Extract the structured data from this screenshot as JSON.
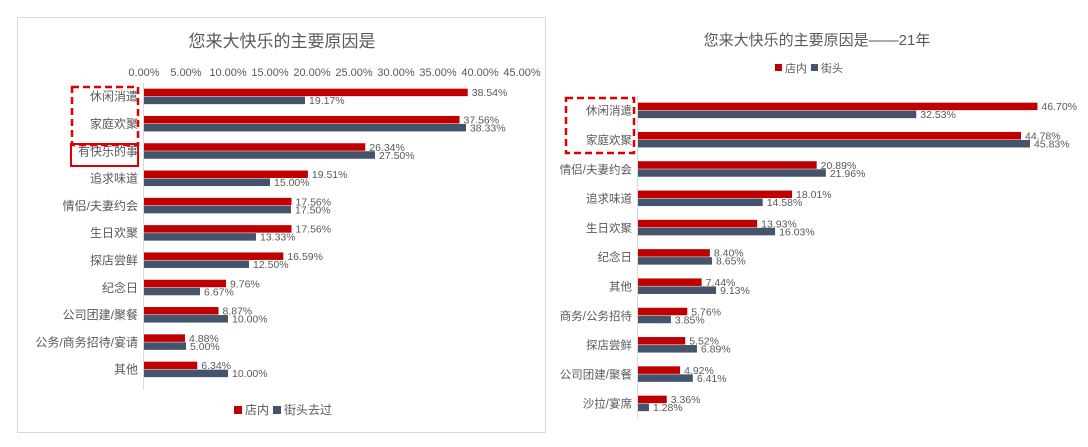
{
  "colors": {
    "store": "#c00000",
    "street": "#44546a",
    "axis": "#d9d9d9",
    "text": "#595959",
    "highlight": "#e00000"
  },
  "chart_data": [
    {
      "type": "bar",
      "orientation": "horizontal",
      "title": "您来大快乐的主要原因是",
      "xlabel": "",
      "ylabel": "",
      "xlim": [
        0,
        45
      ],
      "ticks": [
        "0.00%",
        "5.00%",
        "10.00%",
        "15.00%",
        "20.00%",
        "25.00%",
        "30.00%",
        "35.00%",
        "40.00%",
        "45.00%"
      ],
      "tick_position": "top",
      "legend_position": "bottom",
      "grid": false,
      "categories": [
        "休闲消遣",
        "家庭欢聚",
        "有快乐的事",
        "追求味道",
        "情侣/夫妻约会",
        "生日欢聚",
        "探店尝鲜",
        "纪念日",
        "公司团建/聚餐",
        "公务/商务招待/宴请",
        "其他"
      ],
      "series": [
        {
          "name": "店内",
          "values": [
            38.54,
            37.56,
            26.34,
            19.51,
            17.56,
            17.56,
            16.59,
            9.76,
            8.87,
            4.88,
            6.34
          ],
          "labels": [
            "38.54%",
            "37.56%",
            "26.34%",
            "19.51%",
            "17.56%",
            "17.56%",
            "16.59%",
            "9.76%",
            "8.87%",
            "4.88%",
            "6.34%"
          ]
        },
        {
          "name": "街头去过",
          "values": [
            19.17,
            38.33,
            27.5,
            15.0,
            17.5,
            13.33,
            12.5,
            6.67,
            10.0,
            5.0,
            10.0
          ],
          "labels": [
            "19.17%",
            "38.33%",
            "27.50%",
            "15.00%",
            "17.50%",
            "13.33%",
            "12.50%",
            "6.67%",
            "10.00%",
            "5.00%",
            "10.00%"
          ]
        }
      ],
      "highlighted_categories": [
        "休闲消遣",
        "家庭欢聚",
        "有快乐的事"
      ]
    },
    {
      "type": "bar",
      "orientation": "horizontal",
      "title": "您来大快乐的主要原因是——21年",
      "xlabel": "",
      "ylabel": "",
      "xlim": [
        0,
        47
      ],
      "legend_position": "top",
      "grid": false,
      "categories": [
        "休闲消遣",
        "家庭欢聚",
        "情侣/夫妻约会",
        "追求味道",
        "生日欢聚",
        "纪念日",
        "其他",
        "商务/公务招待",
        "探店尝鲜",
        "公司团建/聚餐",
        "沙拉/宴席"
      ],
      "series": [
        {
          "name": "店内",
          "values": [
            46.7,
            44.78,
            20.89,
            18.01,
            13.93,
            8.4,
            7.44,
            5.76,
            5.52,
            4.92,
            3.36
          ],
          "labels": [
            "46.70%",
            "44.78%",
            "20.89%",
            "18.01%",
            "13.93%",
            "8.40%",
            "7.44%",
            "5.76%",
            "5.52%",
            "4.92%",
            "3.36%"
          ]
        },
        {
          "name": "街头",
          "values": [
            32.53,
            45.83,
            21.96,
            14.58,
            16.03,
            8.65,
            9.13,
            3.85,
            6.89,
            6.41,
            1.28
          ],
          "labels": [
            "32.53%",
            "45.83%",
            "21.96%",
            "14.58%",
            "16.03%",
            "8.65%",
            "9.13%",
            "3.85%",
            "6.89%",
            "6.41%",
            "1.28%"
          ]
        }
      ],
      "highlighted_categories": [
        "休闲消遣",
        "家庭欢聚"
      ]
    }
  ]
}
